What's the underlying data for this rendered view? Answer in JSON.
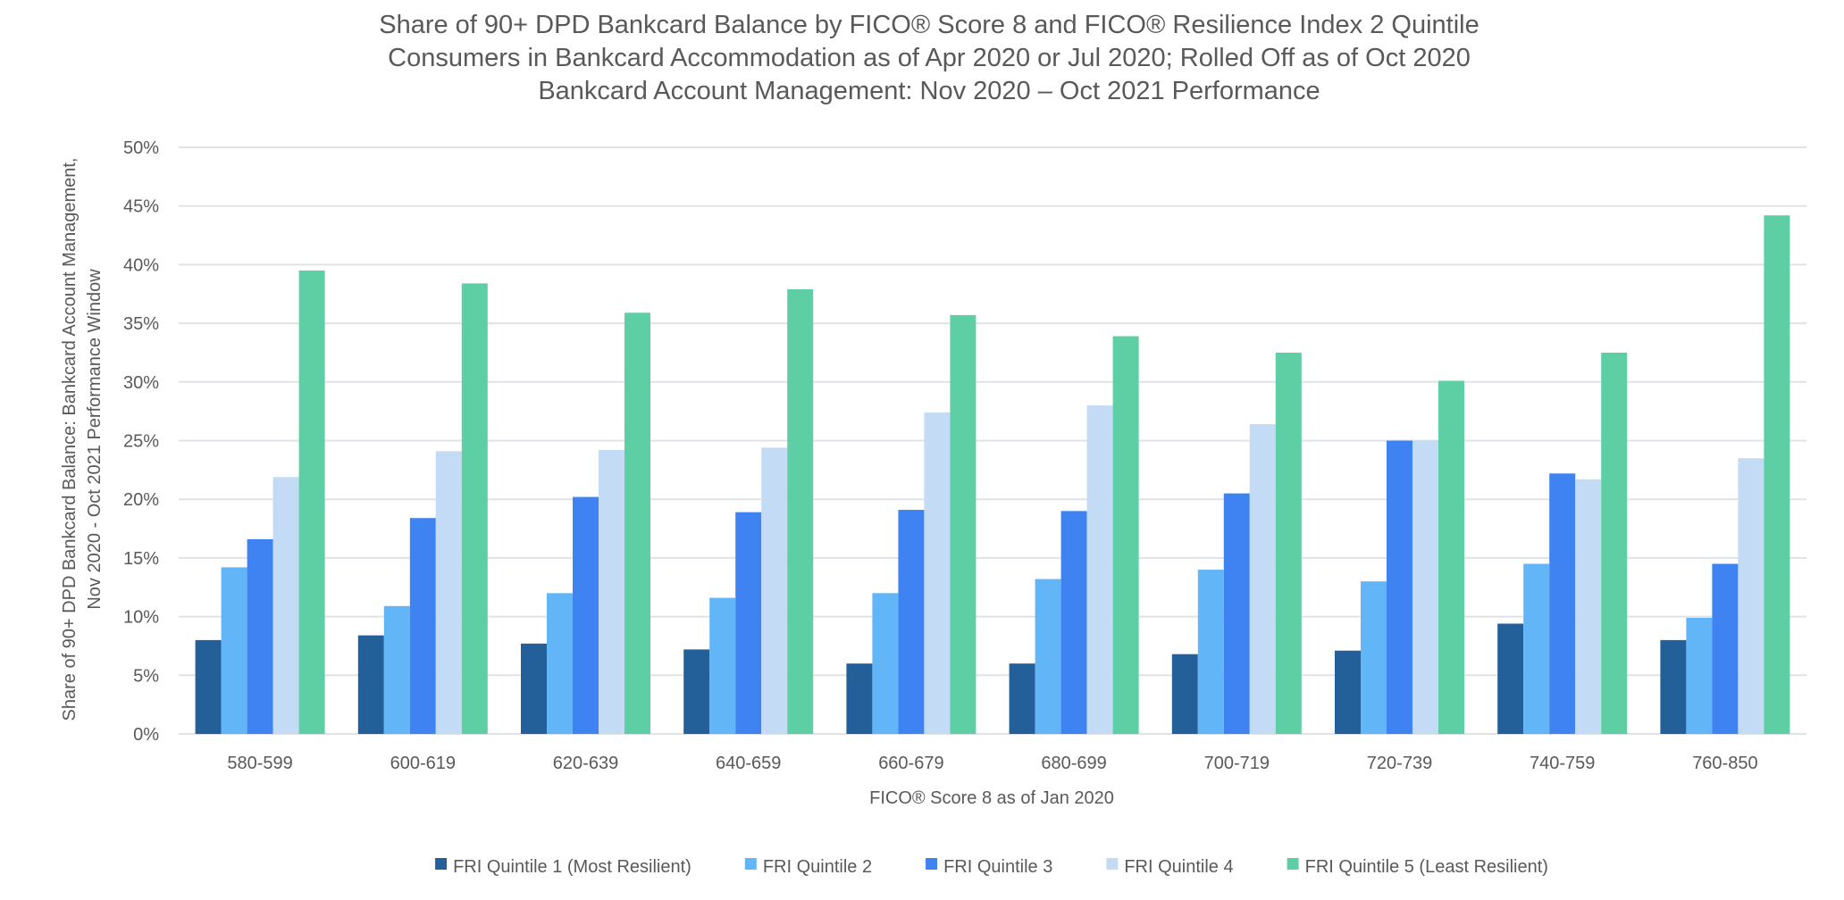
{
  "chart_data": {
    "type": "bar",
    "title": [
      "Share of 90+ DPD Bankcard Balance by FICO® Score 8 and FICO® Resilience Index 2 Quintile",
      "Consumers in Bankcard Accommodation as of Apr 2020 or Jul 2020; Rolled Off as of Oct 2020",
      "Bankcard Account Management: Nov 2020 – Oct 2021 Performance"
    ],
    "xlabel": "FICO® Score 8 as of Jan 2020",
    "ylabel": [
      "Share of 90+ DPD Bankcard Balance: Bankcard Account Management,",
      "Nov 2020 - Oct 2021 Performance Window"
    ],
    "ylim": [
      0,
      50
    ],
    "yticks": [
      "0%",
      "5%",
      "10%",
      "15%",
      "20%",
      "25%",
      "30%",
      "35%",
      "40%",
      "45%",
      "50%"
    ],
    "grid": true,
    "legend_position": "bottom",
    "categories": [
      "580-599",
      "600-619",
      "620-639",
      "640-659",
      "660-679",
      "680-699",
      "700-719",
      "720-739",
      "740-759",
      "760-850"
    ],
    "series": [
      {
        "name": "FRI Quintile 1 (Most Resilient)",
        "color": "#23609a",
        "values": [
          8.0,
          8.4,
          7.7,
          7.2,
          6.0,
          6.0,
          6.8,
          7.1,
          9.4,
          8.0
        ]
      },
      {
        "name": "FRI Quintile 2",
        "color": "#62b5f7",
        "values": [
          14.2,
          10.9,
          12.0,
          11.6,
          12.0,
          13.2,
          14.0,
          13.0,
          14.5,
          9.9
        ]
      },
      {
        "name": "FRI Quintile 3",
        "color": "#3f83f2",
        "values": [
          16.6,
          18.4,
          20.2,
          18.9,
          19.1,
          19.0,
          20.5,
          25.0,
          22.2,
          14.5
        ]
      },
      {
        "name": "FRI Quintile 4",
        "color": "#c3dbf5",
        "values": [
          21.9,
          24.1,
          24.2,
          24.4,
          27.4,
          28.0,
          26.4,
          25.0,
          21.7,
          23.5
        ]
      },
      {
        "name": "FRI Quintile 5 (Least Resilient)",
        "color": "#5ecfa4",
        "values": [
          39.5,
          38.4,
          35.9,
          37.9,
          35.7,
          33.9,
          32.5,
          30.1,
          32.5,
          44.2
        ]
      }
    ]
  }
}
